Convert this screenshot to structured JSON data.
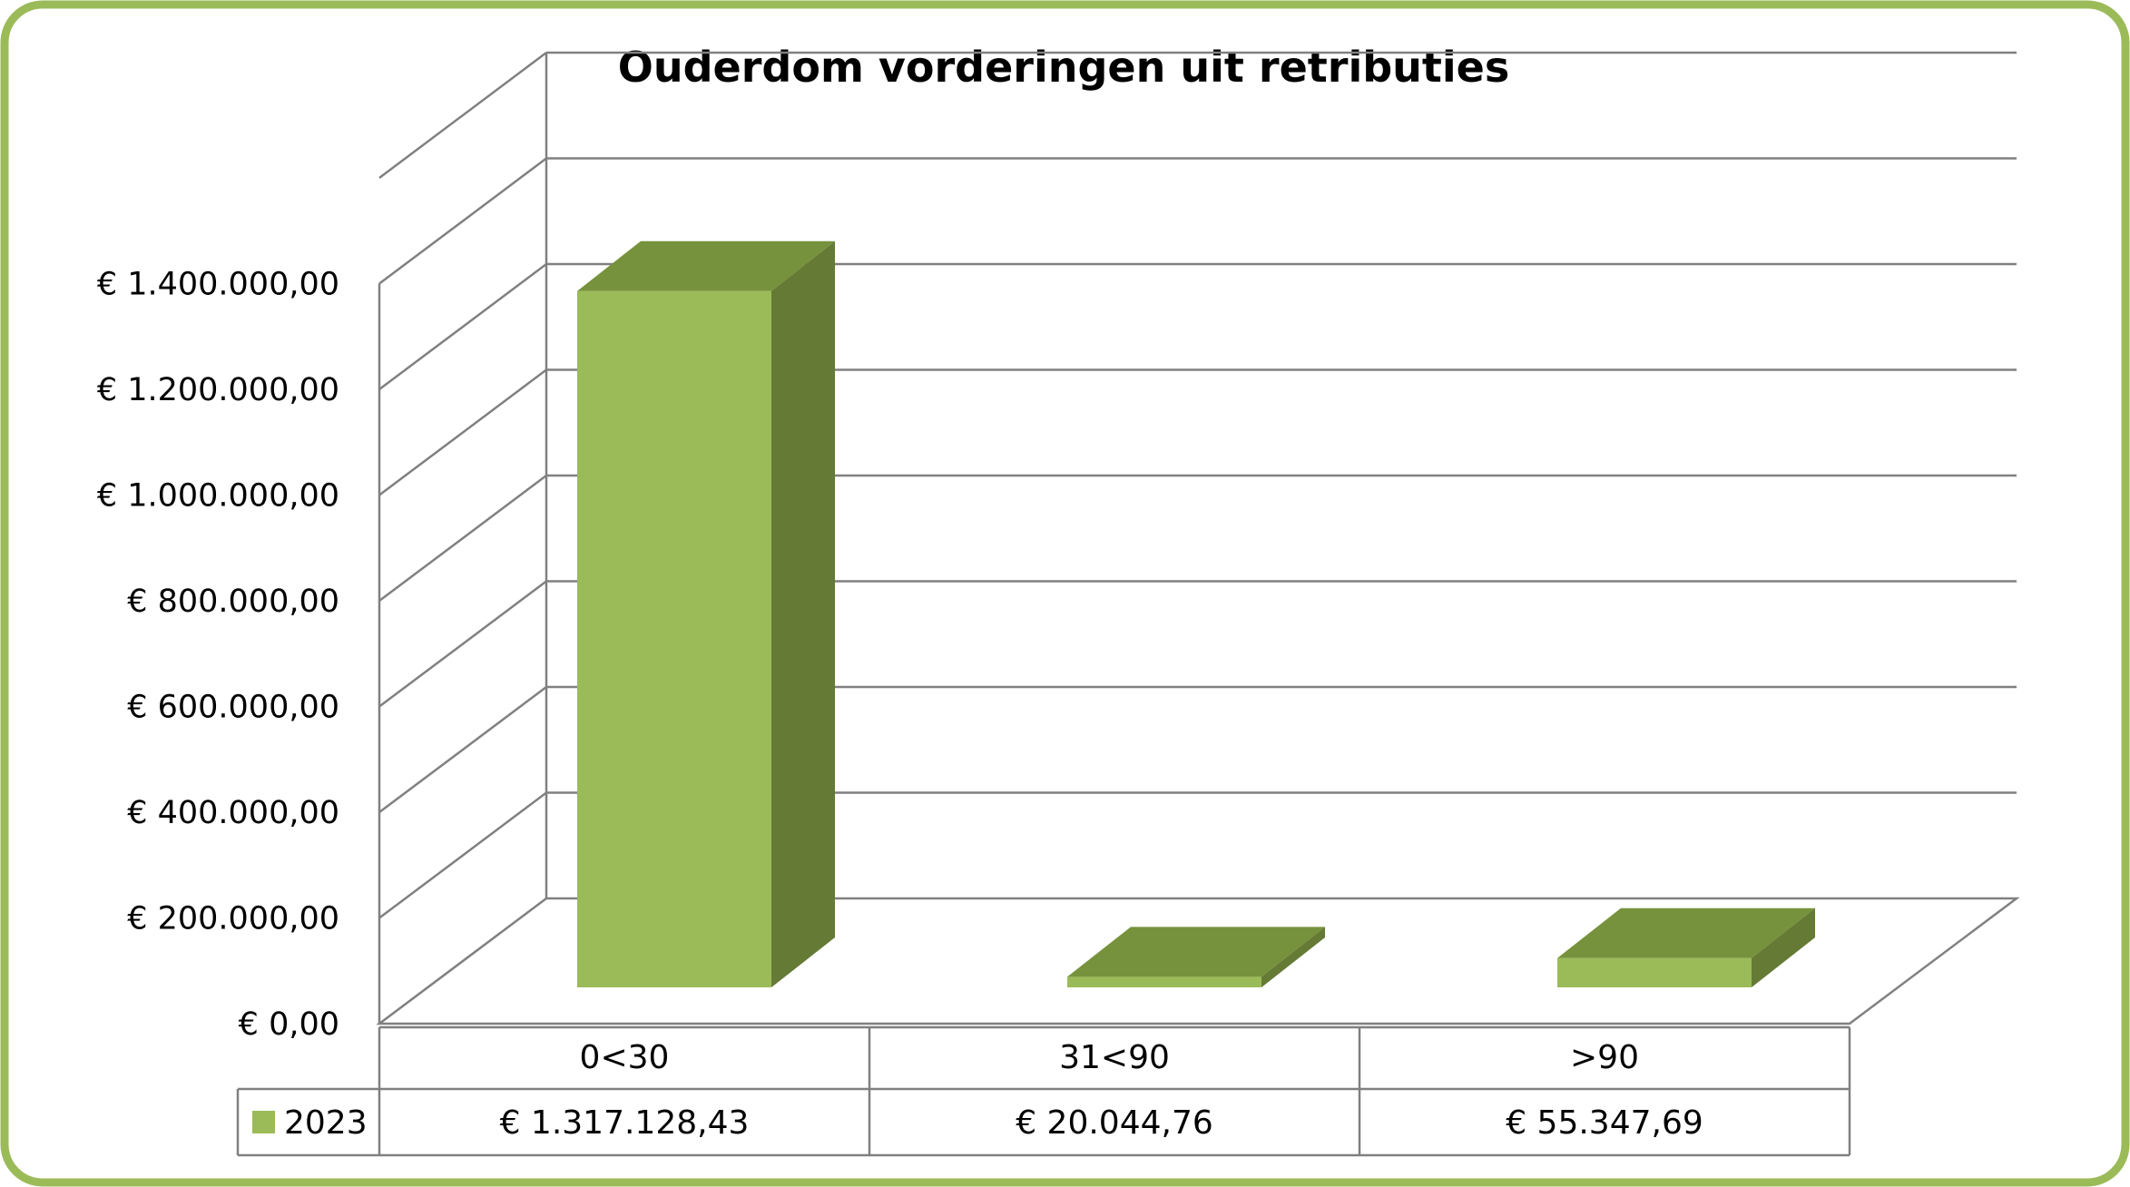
{
  "chart_data": {
    "type": "bar",
    "title": "Ouderdom vorderingen uit retributies",
    "categories": [
      "0<30",
      "31<90",
      ">90"
    ],
    "series": [
      {
        "name": "2023",
        "values": [
          1317128.43,
          20044.76,
          55347.69
        ],
        "value_labels": [
          "€ 1.317.128,43",
          "€ 20.044,76",
          "€ 55.347,69"
        ]
      }
    ],
    "y_ticks": [
      0,
      200000,
      400000,
      600000,
      800000,
      1000000,
      1200000,
      1400000
    ],
    "y_tick_labels": [
      "€ 0,00",
      "€ 200.000,00",
      "€ 400.000,00",
      "€ 600.000,00",
      "€ 800.000,00",
      "€ 1.000.000,00",
      "€ 1.200.000,00",
      "€ 1.400.000,00"
    ],
    "ylim": [
      0,
      1600000
    ],
    "grid": true,
    "legend": "data-table",
    "style": "3d-bar"
  },
  "colors": {
    "border": "#9bbb59",
    "bar_front": "#9bbb59",
    "bar_top": "#77923c",
    "bar_side": "#647a35",
    "grid": "#808080"
  }
}
